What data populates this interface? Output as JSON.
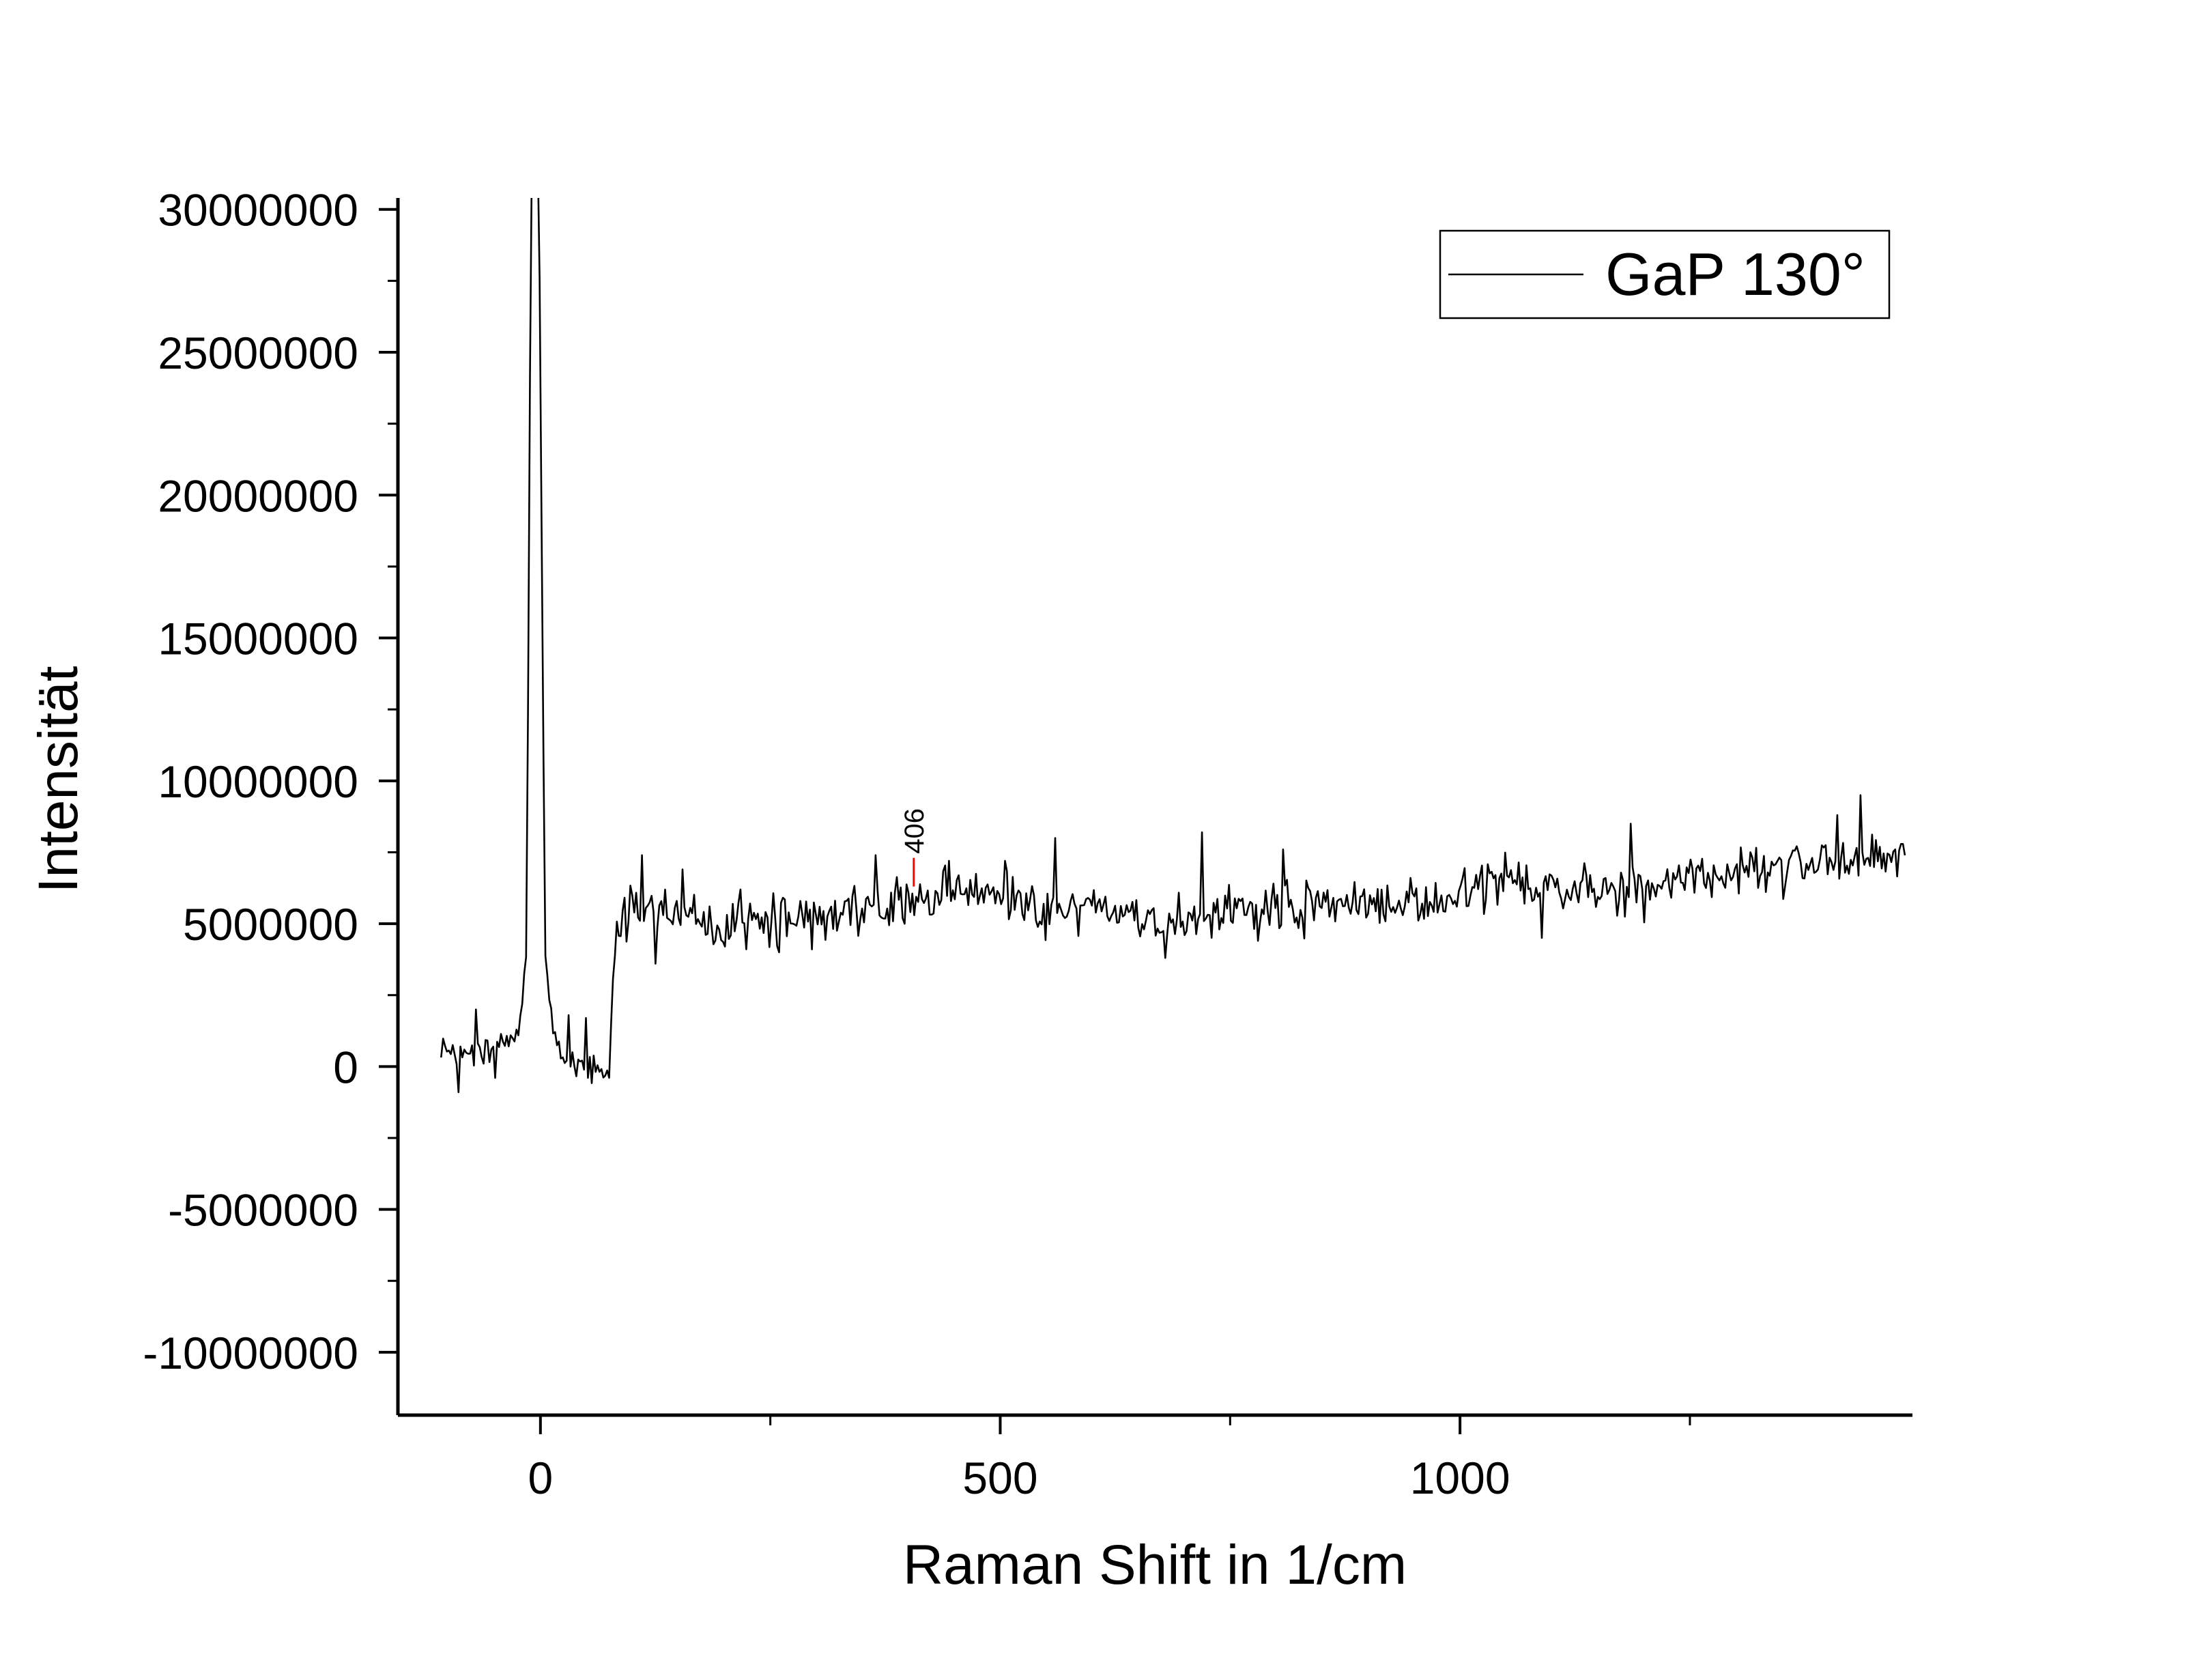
{
  "chart_data": {
    "type": "line",
    "title": "",
    "xlabel": "Raman Shift in 1/cm",
    "ylabel": "Intensität",
    "xlim": [
      -155,
      1492
    ],
    "ylim": [
      -12200000,
      30400000
    ],
    "xticks": [
      0,
      500,
      1000
    ],
    "xtick_labels": [
      "0",
      "500",
      "1000"
    ],
    "xminor_ticks": [
      250,
      750,
      1250
    ],
    "yticks": [
      30000000,
      25000000,
      20000000,
      15000000,
      10000000,
      5000000,
      0,
      -5000000,
      -10000000
    ],
    "ytick_labels": [
      "30000000",
      "25000000",
      "20000000",
      "15000000",
      "10000000",
      "5000000",
      "0",
      "-5000000",
      "-10000000"
    ],
    "yminor_ticks": [
      27500000,
      22500000,
      17500000,
      12500000,
      7500000,
      2500000,
      -2500000,
      -7500000
    ],
    "grid": false,
    "legend_position": "top-right",
    "line_color": "#000000",
    "annotation_color": "#ff0000",
    "series": [
      {
        "name": "GaP 130°",
        "control_points": [
          [
            -108,
            300000
          ],
          [
            -60,
            400000
          ],
          [
            -35,
            800000
          ],
          [
            -25,
            1200000
          ],
          [
            -15,
            4000000
          ],
          [
            -10,
            32000000
          ],
          [
            -2,
            32000000
          ],
          [
            5,
            4000000
          ],
          [
            15,
            800000
          ],
          [
            40,
            0
          ],
          [
            75,
            -200000
          ],
          [
            80,
            3800000
          ],
          [
            95,
            5800000
          ],
          [
            130,
            5600000
          ],
          [
            200,
            4800000
          ],
          [
            300,
            5300000
          ],
          [
            406,
            5700000
          ],
          [
            450,
            6100000
          ],
          [
            500,
            6200000
          ],
          [
            540,
            5300000
          ],
          [
            600,
            5500000
          ],
          [
            680,
            5000000
          ],
          [
            750,
            5400000
          ],
          [
            800,
            5500000
          ],
          [
            900,
            5700000
          ],
          [
            1000,
            6000000
          ],
          [
            1050,
            6600000
          ],
          [
            1100,
            6200000
          ],
          [
            1200,
            6200000
          ],
          [
            1300,
            6800000
          ],
          [
            1400,
            7200000
          ],
          [
            1485,
            7400000
          ]
        ],
        "spikes": [
          [
            -70,
            2000000
          ],
          [
            -90,
            -900000
          ],
          [
            -50,
            -400000
          ],
          [
            30,
            1800000
          ],
          [
            50,
            1700000
          ],
          [
            110,
            7400000
          ],
          [
            125,
            3600000
          ],
          [
            155,
            6900000
          ],
          [
            200,
            4200000
          ],
          [
            218,
            6200000
          ],
          [
            260,
            4000000
          ],
          [
            295,
            4100000
          ],
          [
            365,
            7400000
          ],
          [
            445,
            7200000
          ],
          [
            560,
            8000000
          ],
          [
            680,
            3800000
          ],
          [
            720,
            8200000
          ],
          [
            780,
            4400000
          ],
          [
            808,
            7600000
          ],
          [
            1090,
            4500000
          ],
          [
            1185,
            8500000
          ],
          [
            1410,
            8800000
          ],
          [
            1435,
            9500000
          ]
        ]
      }
    ],
    "annotations": [
      {
        "text": "406",
        "x": 406,
        "y": 6300000
      }
    ]
  },
  "legend": {
    "label": "GaP 130°"
  }
}
